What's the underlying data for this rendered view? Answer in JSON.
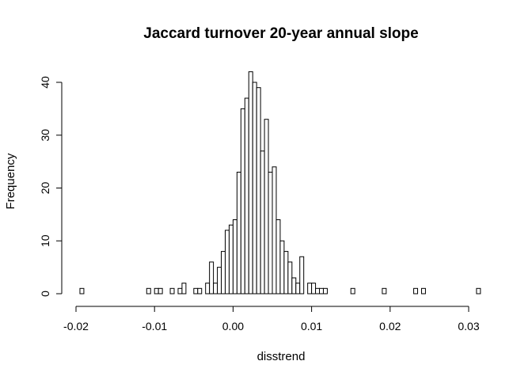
{
  "chart_data": {
    "type": "bar",
    "title": "Jaccard turnover 20-year annual slope",
    "xlabel": "disstrend",
    "ylabel": "Frequency",
    "bin_width": 0.0005,
    "bins_start": -0.0195,
    "xlim": [
      -0.02,
      0.032
    ],
    "ylim": [
      0,
      42
    ],
    "x_ticks": [
      -0.02,
      -0.01,
      0.0,
      0.01,
      0.02,
      0.03
    ],
    "x_tick_labels": [
      "-0.02",
      "-0.01",
      "0.00",
      "0.01",
      "0.02",
      "0.03"
    ],
    "y_ticks": [
      0,
      10,
      20,
      30,
      40
    ],
    "y_tick_labels": [
      "0",
      "10",
      "20",
      "30",
      "40"
    ],
    "values": [
      1,
      0,
      0,
      0,
      0,
      0,
      0,
      0,
      0,
      0,
      0,
      0,
      0,
      0,
      0,
      0,
      0,
      1,
      0,
      1,
      1,
      0,
      0,
      1,
      0,
      1,
      2,
      0,
      0,
      1,
      1,
      0,
      2,
      6,
      2,
      5,
      8,
      12,
      13,
      14,
      23,
      35,
      37,
      42,
      40,
      39,
      27,
      33,
      23,
      24,
      14,
      10,
      8,
      6,
      3,
      2,
      7,
      0,
      2,
      2,
      1,
      1,
      1,
      0,
      0,
      0,
      0,
      0,
      0,
      1,
      0,
      0,
      0,
      0,
      0,
      0,
      0,
      1,
      0,
      0,
      0,
      0,
      0,
      0,
      0,
      1,
      0,
      1,
      0,
      0,
      0,
      0,
      0,
      0,
      0,
      0,
      0,
      0,
      0,
      0,
      0,
      1
    ]
  }
}
